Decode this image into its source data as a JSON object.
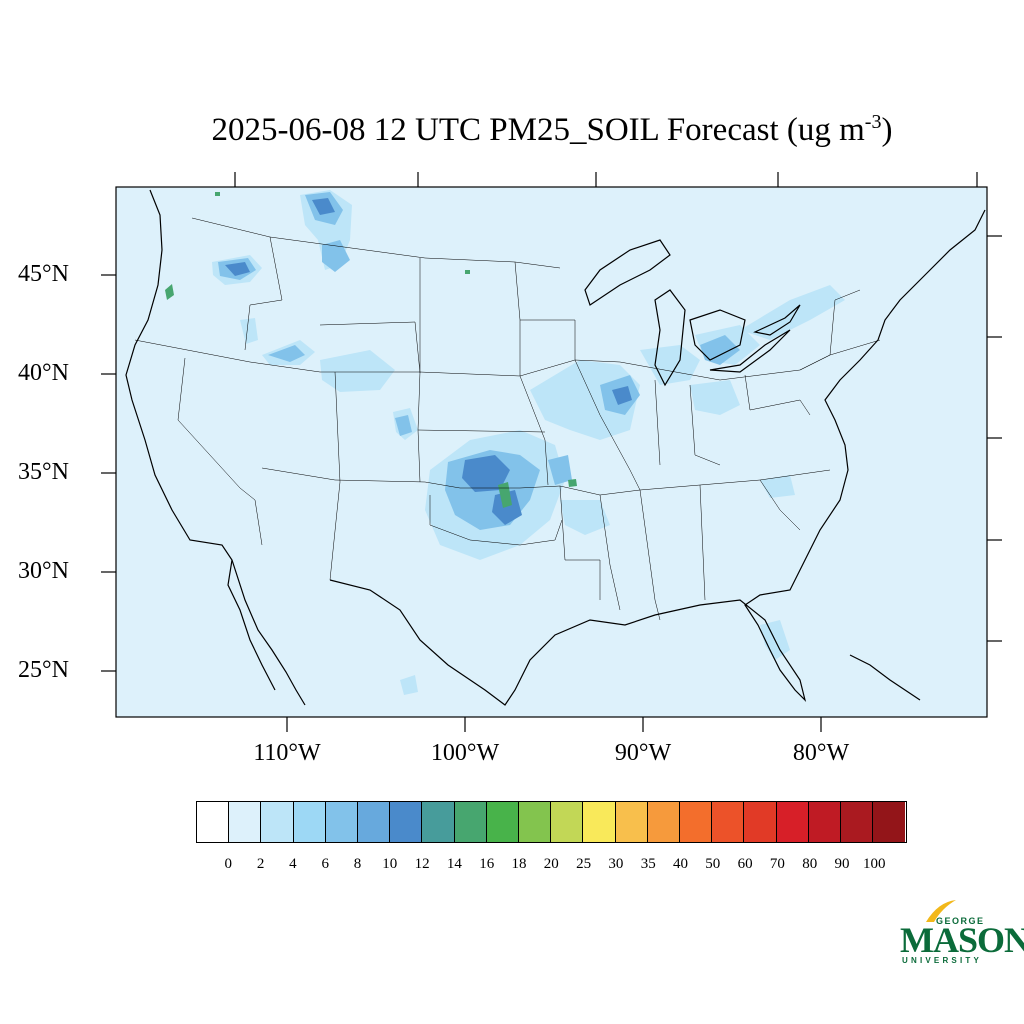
{
  "title": {
    "main": "2025-06-08 12 UTC PM25_SOIL Forecast (ug m",
    "exponent": "-3",
    "close": ")"
  },
  "map": {
    "background_color": "#ddf1fb",
    "latitude_labels": [
      {
        "text": "45°N",
        "lat": 45
      },
      {
        "text": "40°N",
        "lat": 40
      },
      {
        "text": "35°N",
        "lat": 35
      },
      {
        "text": "30°N",
        "lat": 30
      },
      {
        "text": "25°N",
        "lat": 25
      }
    ],
    "longitude_labels": [
      {
        "text": "110°W",
        "lon": -110
      },
      {
        "text": "100°W",
        "lon": -100
      },
      {
        "text": "90°W",
        "lon": -90
      },
      {
        "text": "80°W",
        "lon": -80
      }
    ]
  },
  "colorbar": {
    "colors": [
      "#ffffff",
      "#ddf1fb",
      "#bde5f8",
      "#9dd8f5",
      "#82c2ea",
      "#67a9dd",
      "#4a8acb",
      "#479c9b",
      "#47a66f",
      "#48b34a",
      "#83c44e",
      "#c2d756",
      "#f9e95a",
      "#f8bf4c",
      "#f69a3c",
      "#f36e2c",
      "#ec5229",
      "#e13a26",
      "#d71f28",
      "#bf1b24",
      "#aa1a20",
      "#931519"
    ],
    "labels": [
      "0",
      "2",
      "4",
      "6",
      "8",
      "10",
      "12",
      "14",
      "16",
      "18",
      "20",
      "25",
      "30",
      "35",
      "40",
      "50",
      "60",
      "70",
      "80",
      "90",
      "100"
    ]
  },
  "logo": {
    "line1": "GEORGE",
    "line2": "MASON",
    "line3": "UNIVERSITY",
    "color": "#0b6b3a",
    "accent_color": "#f2b81a"
  }
}
